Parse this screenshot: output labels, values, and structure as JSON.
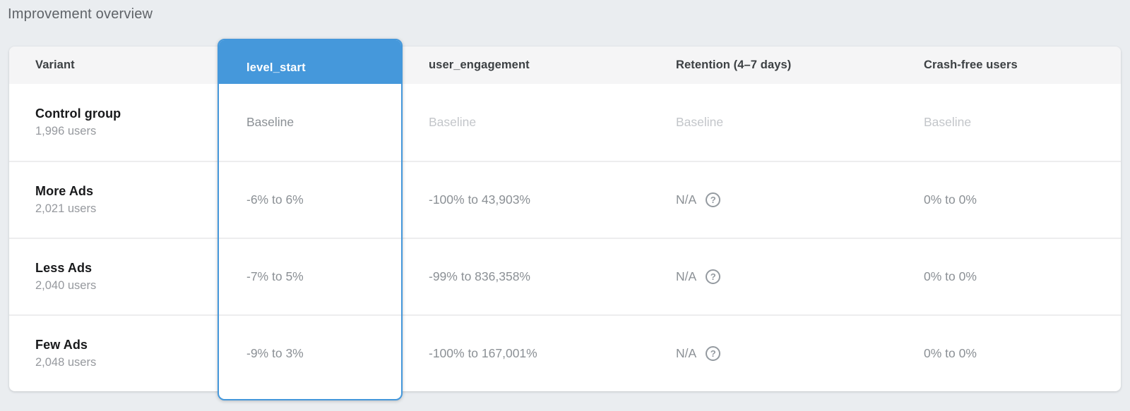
{
  "page": {
    "title": "Improvement overview"
  },
  "colors": {
    "accent_blue": "#4598db",
    "page_background": "#eaedf0",
    "header_background": "#f5f5f6",
    "baseline_text": "#c3c6ca",
    "value_text": "#8b9095"
  },
  "icons": {
    "help_glyph": "?"
  },
  "table": {
    "columns": [
      {
        "label": "Variant",
        "selected": false
      },
      {
        "label": "level_start",
        "selected": true
      },
      {
        "label": "user_engagement",
        "selected": false
      },
      {
        "label": "Retention (4–7 days)",
        "selected": false
      },
      {
        "label": "Crash-free users",
        "selected": false
      }
    ],
    "rows": [
      {
        "variant": "Control group",
        "users": "1,996 users",
        "level_start": "Baseline",
        "user_engagement": "Baseline",
        "retention": "Baseline",
        "crash_free": "Baseline",
        "is_baseline": true
      },
      {
        "variant": "More Ads",
        "users": "2,021 users",
        "level_start": "-6% to 6%",
        "user_engagement": "-100% to 43,903%",
        "retention": "N/A",
        "crash_free": "0% to 0%",
        "is_baseline": false
      },
      {
        "variant": "Less Ads",
        "users": "2,040 users",
        "level_start": "-7% to 5%",
        "user_engagement": "-99% to 836,358%",
        "retention": "N/A",
        "crash_free": "0% to 0%",
        "is_baseline": false
      },
      {
        "variant": "Few Ads",
        "users": "2,048 users",
        "level_start": "-9% to 3%",
        "user_engagement": "-100% to 167,001%",
        "retention": "N/A",
        "crash_free": "0% to 0%",
        "is_baseline": false
      }
    ]
  }
}
